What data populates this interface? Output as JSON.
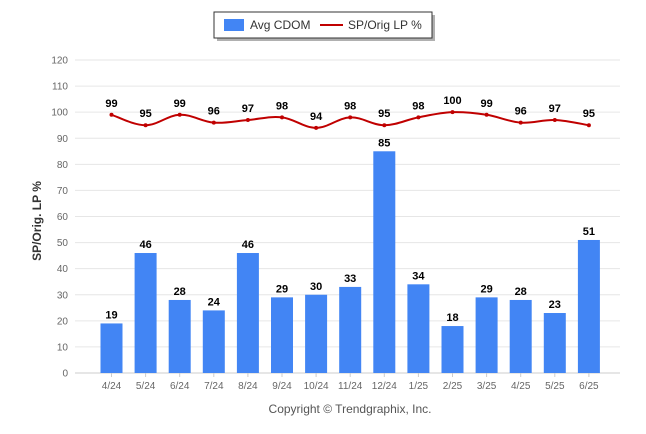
{
  "chart_data": {
    "type": "bar",
    "categories": [
      "4/24",
      "5/24",
      "6/24",
      "7/24",
      "8/24",
      "9/24",
      "10/24",
      "11/24",
      "12/24",
      "1/25",
      "2/25",
      "3/25",
      "4/25",
      "5/25",
      "6/25"
    ],
    "series": [
      {
        "name": "Avg CDOM",
        "type": "bar",
        "color": "#4285f4",
        "values": [
          19,
          46,
          28,
          24,
          46,
          29,
          30,
          33,
          85,
          34,
          18,
          29,
          28,
          23,
          51
        ]
      },
      {
        "name": "SP/Orig LP %",
        "type": "line",
        "color": "#c00000",
        "values": [
          99,
          95,
          99,
          96,
          97,
          98,
          94,
          98,
          95,
          98,
          100,
          99,
          96,
          97,
          95
        ]
      }
    ],
    "ylabel": "SP/Orig. LP %",
    "ylim": [
      0,
      120
    ],
    "yticks": [
      "0",
      "10",
      "20",
      "30",
      "40",
      "50",
      "60",
      "70",
      "80",
      "90",
      "100",
      "110",
      "120"
    ],
    "grid": true,
    "legend_position": "top-center"
  },
  "legend": {
    "bar_label": "Avg CDOM",
    "line_label": "SP/Orig LP %"
  },
  "credit": "Copyright © Trendgraphix, Inc."
}
